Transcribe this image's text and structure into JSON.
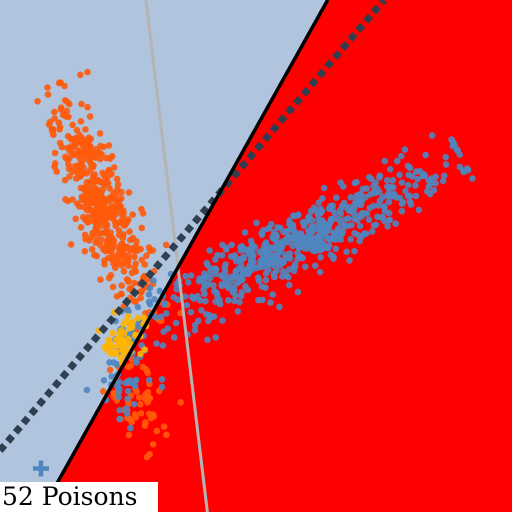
{
  "caption": "52 Poisons",
  "chart_data": {
    "type": "scatter",
    "title": "",
    "xlabel": "",
    "ylabel": "",
    "xlim": [
      0,
      100
    ],
    "ylim": [
      0,
      100
    ],
    "grid": false,
    "legend": "none",
    "colors": {
      "region_a": "#b0c4de",
      "region_b": "#ff0000",
      "series_steelblue": "#4f86c0",
      "series_orange": "#ff5a0a",
      "series_gold": "#ffb400",
      "poison_marker": "#4f86c0",
      "decision_boundary": "#000000",
      "dotted_boundary": "#2f3f4f",
      "gray_line": "#b4b4b4"
    },
    "lines": {
      "decision_boundary": [
        [
          8,
          0
        ],
        [
          64,
          100
        ]
      ],
      "dotted_boundary": [
        [
          0,
          12
        ],
        [
          75,
          100
        ]
      ],
      "gray_line": [
        [
          28.5,
          100
        ],
        [
          40.5,
          0
        ]
      ]
    },
    "clusters": [
      {
        "color": "series_orange",
        "count": 470,
        "center": [
          20,
          60
        ],
        "axis": [
          -0.36,
          0.93
        ],
        "spread_major": 11.5,
        "spread_minor": 2.6,
        "extent": [
          -2.2,
          2.2
        ]
      },
      {
        "color": "series_orange",
        "count": 60,
        "center": [
          26,
          22
        ],
        "axis": [
          -0.25,
          0.97
        ],
        "spread_major": 5,
        "spread_minor": 2.2,
        "extent": [
          -2.6,
          2.6
        ]
      },
      {
        "color": "series_steelblue",
        "count": 620,
        "center": [
          57,
          52
        ],
        "axis": [
          0.88,
          0.47
        ],
        "spread_major": 17,
        "spread_minor": 3,
        "extent": [
          -2.2,
          2.2
        ]
      },
      {
        "color": "series_steelblue",
        "count": 55,
        "center": [
          25,
          27
        ],
        "axis": [
          0.3,
          0.95
        ],
        "spread_major": 5,
        "spread_minor": 3,
        "extent": [
          -2.5,
          2.5
        ]
      },
      {
        "color": "series_gold",
        "count": 55,
        "center": [
          24,
          33.5
        ],
        "axis": [
          0.6,
          0.8
        ],
        "spread_major": 3,
        "spread_minor": 1.8,
        "extent": [
          -2,
          2
        ]
      }
    ],
    "poison_points": [
      [
        8,
        8.5
      ]
    ]
  }
}
